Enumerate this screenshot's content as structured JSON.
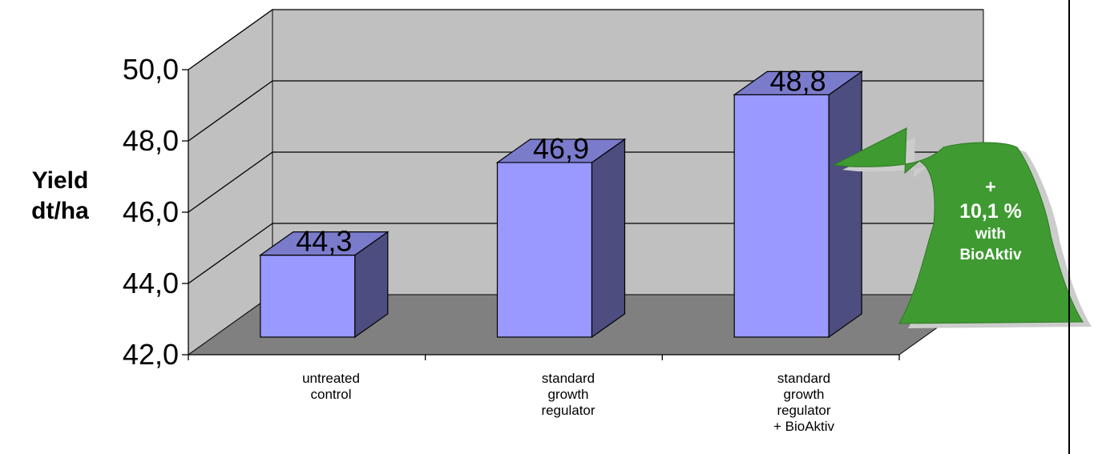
{
  "chart_data": {
    "type": "bar",
    "categories": [
      "untreated control",
      "standard growth regulator",
      "standard growth regulator + BioAktiv"
    ],
    "category_lines": [
      [
        "untreated",
        "control"
      ],
      [
        "standard",
        "growth",
        "regulator"
      ],
      [
        "standard",
        "growth",
        "regulator",
        "+ BioAktiv"
      ]
    ],
    "values": [
      44.3,
      46.9,
      48.8
    ],
    "value_labels": [
      "44,3",
      "46,9",
      "48,8"
    ],
    "ylabel_lines": [
      "Yield",
      "dt/ha"
    ],
    "ylim": [
      42.0,
      50.0
    ],
    "yticks": [
      "42,0",
      "44,0",
      "46,0",
      "48,0",
      "50,0"
    ],
    "grid": true,
    "style": "3d",
    "annotation": {
      "lines": [
        "+",
        "10,1 %",
        "with",
        "BioAktiv"
      ],
      "color": "#3e9a31"
    },
    "colors": {
      "bar_front": "#9999ff",
      "bar_side": "#4d4d80",
      "bar_top": "#7b7bcc",
      "back_wall": "#c0c0c0",
      "side_wall": "#c0c0c0",
      "floor": "#808080"
    }
  }
}
